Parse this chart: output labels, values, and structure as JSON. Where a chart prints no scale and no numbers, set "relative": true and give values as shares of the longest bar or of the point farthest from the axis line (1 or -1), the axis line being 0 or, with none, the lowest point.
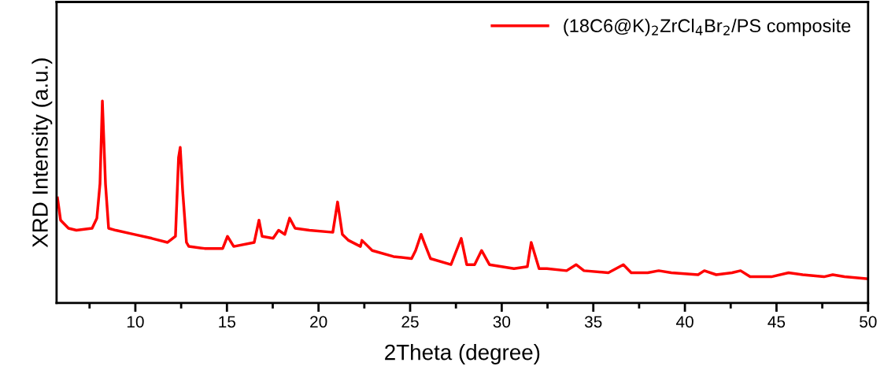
{
  "chart_data": {
    "type": "line",
    "relative": true,
    "xlabel": "2Theta (degree)",
    "ylabel": "XRD Intensity (a.u.)",
    "xlim": [
      5.7,
      50
    ],
    "xticks": [
      {
        "value": 7.5,
        "label": null
      },
      10,
      {
        "value": 12.5,
        "label": null
      },
      15,
      {
        "value": 17.5,
        "label": null
      },
      20,
      {
        "value": 22.5,
        "label": null
      },
      25,
      {
        "value": 27.5,
        "label": null
      },
      30,
      {
        "value": 32.5,
        "label": null
      },
      35,
      {
        "value": 37.5,
        "label": null
      },
      40,
      {
        "value": 42.5,
        "label": null
      },
      45,
      {
        "value": 47.5,
        "label": null
      },
      50
    ],
    "tick_labels": "x",
    "legend": "top right",
    "grid": false,
    "marker": "none",
    "line_style": "solid",
    "series": [
      {
        "name": "(18C6@K)$_{2}$ZrCl$_{4}$Br$_{2}$/PS composite",
        "color": "#ff0000",
        "x": [
          5.75,
          5.92,
          6.35,
          6.78,
          7.64,
          7.9,
          8.07,
          8.2,
          8.37,
          8.54,
          8.93,
          9.91,
          10.9,
          11.76,
          12.19,
          12.36,
          12.45,
          12.58,
          12.79,
          12.92,
          13.78,
          14.77,
          15.03,
          15.37,
          16.49,
          16.75,
          16.92,
          17.52,
          17.82,
          18.16,
          18.42,
          18.72,
          19.5,
          20.78,
          21.04,
          21.3,
          21.64,
          22.29,
          22.37,
          22.93,
          24.09,
          25.08,
          25.3,
          25.6,
          25.81,
          26.11,
          27.23,
          27.79,
          28.09,
          28.52,
          28.9,
          29.33,
          30.67,
          31.4,
          31.61,
          32.04,
          32.47,
          33.54,
          34.06,
          34.49,
          35.82,
          36.64,
          37.07,
          37.97,
          38.57,
          39.26,
          40.72,
          41.06,
          41.71,
          42.57,
          43.04,
          43.56,
          44.72,
          45.66,
          46.43,
          47.59,
          48.07,
          48.71,
          49.96
        ],
        "values": [
          0.52,
          0.41,
          0.37,
          0.36,
          0.37,
          0.42,
          0.59,
          1.0,
          0.59,
          0.37,
          0.36,
          0.34,
          0.32,
          0.3,
          0.33,
          0.72,
          0.77,
          0.56,
          0.3,
          0.28,
          0.27,
          0.27,
          0.33,
          0.28,
          0.3,
          0.41,
          0.33,
          0.32,
          0.36,
          0.34,
          0.42,
          0.37,
          0.36,
          0.35,
          0.5,
          0.34,
          0.31,
          0.28,
          0.31,
          0.26,
          0.23,
          0.22,
          0.26,
          0.34,
          0.29,
          0.22,
          0.19,
          0.32,
          0.19,
          0.19,
          0.26,
          0.19,
          0.17,
          0.18,
          0.3,
          0.17,
          0.17,
          0.16,
          0.19,
          0.16,
          0.15,
          0.19,
          0.15,
          0.15,
          0.16,
          0.15,
          0.14,
          0.16,
          0.14,
          0.15,
          0.16,
          0.13,
          0.13,
          0.15,
          0.14,
          0.13,
          0.14,
          0.13,
          0.12
        ]
      }
    ]
  }
}
